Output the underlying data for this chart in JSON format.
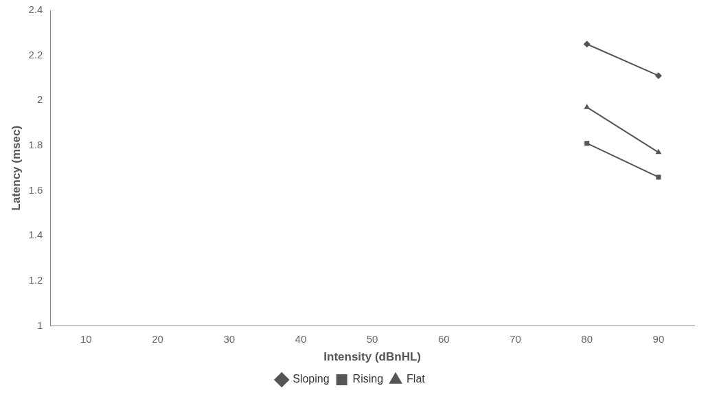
{
  "chart_data": {
    "type": "line",
    "xlabel": "Intensity (dBnHL)",
    "ylabel": "Latency (msec)",
    "categories": [
      "10",
      "20",
      "30",
      "40",
      "50",
      "60",
      "70",
      "80",
      "90"
    ],
    "series": [
      {
        "name": "Sloping",
        "color": "#555555",
        "marker": "diamond",
        "values": [
          null,
          null,
          null,
          null,
          null,
          null,
          null,
          2.25,
          2.11
        ]
      },
      {
        "name": "Rising",
        "color": "#555555",
        "marker": "square",
        "values": [
          null,
          null,
          null,
          null,
          null,
          null,
          null,
          1.81,
          1.66
        ]
      },
      {
        "name": "Flat",
        "color": "#555555",
        "marker": "triangle",
        "values": [
          null,
          null,
          null,
          null,
          null,
          null,
          null,
          1.97,
          1.77
        ]
      }
    ],
    "ylim": [
      1,
      2.4
    ],
    "yticks": [
      1,
      1.2,
      1.4,
      1.6,
      1.8,
      2,
      2.2,
      2.4
    ],
    "legend": "bottom",
    "grid": false,
    "line_style": "solid"
  }
}
